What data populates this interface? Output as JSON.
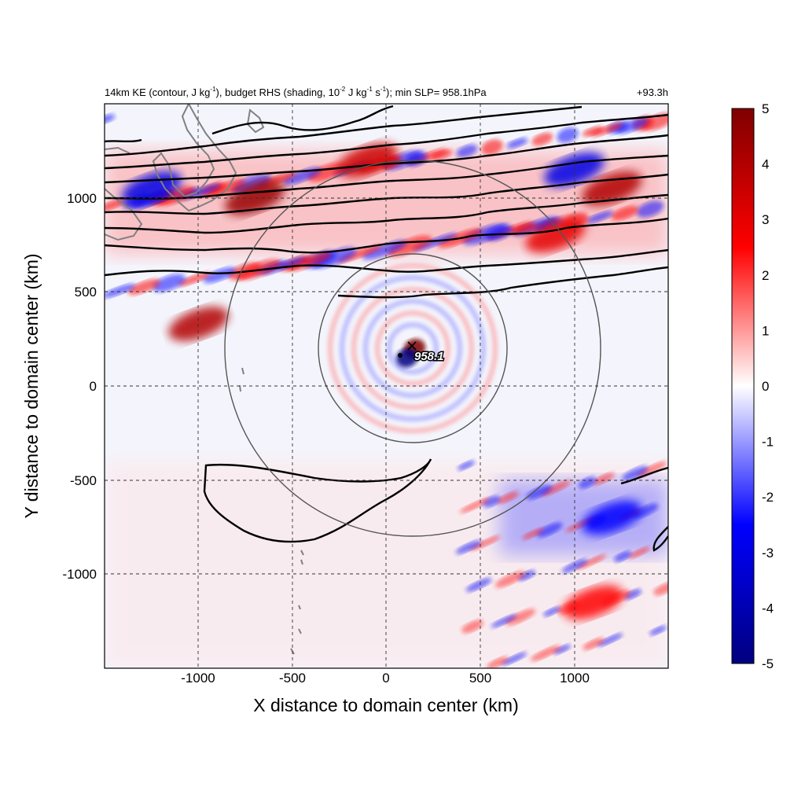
{
  "title": {
    "part1": "14km KE (contour, J kg",
    "part1_sup": "-1",
    "part2": "), budget RHS (shading, 10",
    "part2_sup": "-2",
    "part3": " J kg",
    "part3_sup": "-1",
    "part4": " s",
    "part4_sup": "-1",
    "part5": "); min SLP= 958.1hPa",
    "right": "+93.3h"
  },
  "chart_data": {
    "type": "heatmap",
    "xlabel": "X distance to domain center (km)",
    "ylabel": "Y distance to domain center (km)",
    "xlim": [
      -1500,
      1500
    ],
    "ylim": [
      -1500,
      1500
    ],
    "xticks": [
      -1000,
      -500,
      0,
      500,
      1000
    ],
    "xtick_labels": [
      "-1000",
      "-500",
      "0",
      "500",
      "1000"
    ],
    "yticks": [
      -1000,
      -500,
      0,
      500,
      1000
    ],
    "ytick_labels": [
      "-1000",
      "-500",
      "0",
      "500",
      "1000"
    ],
    "grid": true,
    "colorbar": {
      "min": -5,
      "max": 5,
      "ticks": [
        5,
        4,
        3,
        2,
        1,
        0,
        -1,
        -2,
        -3,
        -4,
        -5
      ],
      "tick_labels": [
        "5",
        "4",
        "3",
        "2",
        "1",
        "0",
        "-1",
        "-2",
        "-3",
        "-4",
        "-5"
      ],
      "colormap": [
        "#00007f",
        "#0000ff",
        "#ffffff",
        "#ff0000",
        "#7f0000"
      ]
    },
    "storm_center": {
      "x": 140,
      "y": 200,
      "label": "958.1"
    },
    "min_slp_marker": {
      "x": 75,
      "y": 165
    },
    "radius_circles_km": [
      500,
      1000
    ],
    "shading_features": [
      {
        "x": -700,
        "y": 1000,
        "value": 4.5
      },
      {
        "x": -100,
        "y": 1200,
        "value": 3.5
      },
      {
        "x": 1200,
        "y": 1050,
        "value": 4
      },
      {
        "x": 900,
        "y": 800,
        "value": 3
      },
      {
        "x": 150,
        "y": 200,
        "value": 5
      },
      {
        "x": 110,
        "y": 150,
        "value": -5
      },
      {
        "x": -1000,
        "y": 330,
        "value": 4
      },
      {
        "x": 1000,
        "y": 1150,
        "value": -3
      },
      {
        "x": -1250,
        "y": 1050,
        "value": -3
      },
      {
        "x": 1200,
        "y": -700,
        "value": -2.5
      },
      {
        "x": 1100,
        "y": -1150,
        "value": 2.5
      }
    ]
  },
  "storm_label": "958.1"
}
